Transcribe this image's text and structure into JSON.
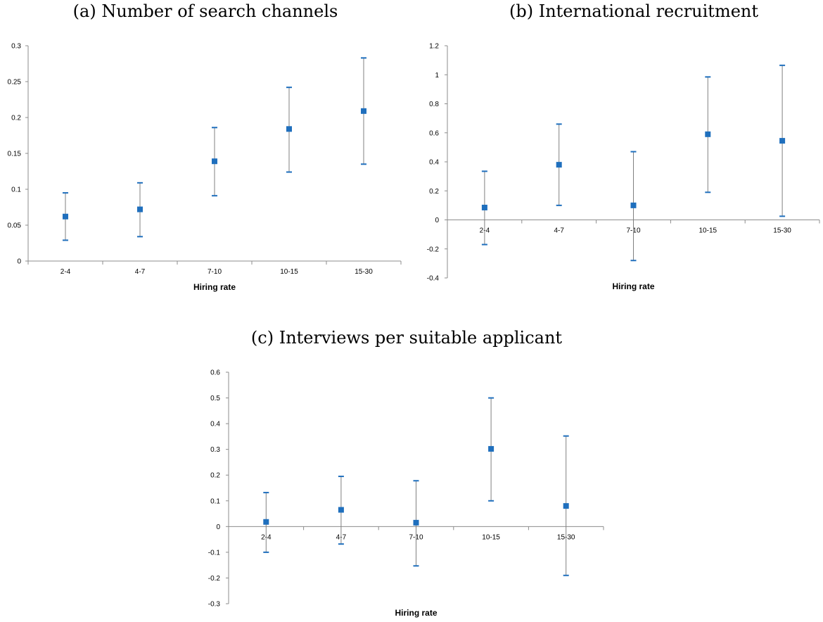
{
  "chart_data": [
    {
      "type": "scatter",
      "title": "(a) Number of search channels",
      "xlabel": "Hiring rate",
      "ylabel": "",
      "categories": [
        "2-4",
        "4-7",
        "7-10",
        "10-15",
        "15-30"
      ],
      "values": [
        0.062,
        0.072,
        0.139,
        0.184,
        0.209
      ],
      "error_low": [
        0.029,
        0.034,
        0.091,
        0.124,
        0.135
      ],
      "error_high": [
        0.095,
        0.109,
        0.186,
        0.242,
        0.283
      ],
      "ylim": [
        0,
        0.3
      ],
      "yticks": [
        "0.3",
        "0.25",
        "0.2",
        "0.15",
        "0.1",
        "0.05",
        "0"
      ],
      "grid": false,
      "legend": "none",
      "marker_color": "#1f6fbd",
      "whisker_color": "#808080"
    },
    {
      "type": "scatter",
      "title": "(b) International recruitment",
      "xlabel": "Hiring rate",
      "ylabel": "",
      "categories": [
        "2-4",
        "4-7",
        "7-10",
        "10-15",
        "15-30"
      ],
      "values": [
        0.085,
        0.38,
        0.1,
        0.59,
        0.545
      ],
      "error_low": [
        -0.17,
        0.1,
        -0.28,
        0.19,
        0.025
      ],
      "error_high": [
        0.335,
        0.66,
        0.47,
        0.985,
        1.065
      ],
      "ylim": [
        -0.4,
        1.2
      ],
      "yticks": [
        "1.2",
        "1",
        "0.8",
        "0.6",
        "0.4",
        "0.2",
        "0",
        "-0.2",
        "-0.4"
      ],
      "grid": false,
      "legend": "none",
      "marker_color": "#1f6fbd",
      "whisker_color": "#808080"
    },
    {
      "type": "scatter",
      "title": "(c) Interviews per suitable applicant",
      "xlabel": "Hiring rate",
      "ylabel": "",
      "categories": [
        "2-4",
        "4-7",
        "7-10",
        "10-15",
        "15-30"
      ],
      "values": [
        0.018,
        0.065,
        0.015,
        0.302,
        0.08
      ],
      "error_low": [
        -0.1,
        -0.068,
        -0.153,
        0.1,
        -0.19
      ],
      "error_high": [
        0.132,
        0.195,
        0.178,
        0.5,
        0.352
      ],
      "ylim": [
        -0.3,
        0.6
      ],
      "yticks": [
        "0.6",
        "0.5",
        "0.4",
        "0.3",
        "0.2",
        "0.1",
        "0",
        "-0.1",
        "-0.2",
        "-0.3"
      ],
      "grid": false,
      "legend": "none",
      "marker_color": "#1f6fbd",
      "whisker_color": "#808080"
    }
  ]
}
